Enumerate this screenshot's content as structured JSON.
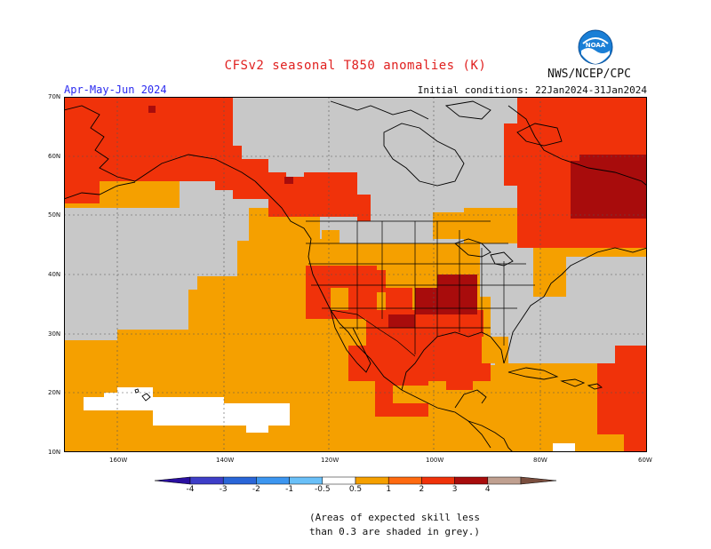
{
  "title": "CFSv2 seasonal T850 anomalies (K)",
  "agency": "NWS/NCEP/CPC",
  "logo_text": "NOAA",
  "period": "Apr-May-Jun 2024",
  "initial_conditions": "Initial conditions: 22Jan2024-31Jan2024",
  "latitude_labels": [
    "70N",
    "60N",
    "50N",
    "40N",
    "30N",
    "20N",
    "10N"
  ],
  "longitude_labels": [
    "160W",
    "140W",
    "120W",
    "100W",
    "80W",
    "60W"
  ],
  "colorbar": {
    "ticks": [
      "-4",
      "-3",
      "-2",
      "-1",
      "-0.5",
      "0.5",
      "1",
      "2",
      "3",
      "4"
    ],
    "colors": [
      "#2a0fa0",
      "#3e3ec8",
      "#2a66d8",
      "#3c96f0",
      "#6ac0f8",
      "#ffffff",
      "#f5a000",
      "#ff6a10",
      "#f0320a",
      "#a80c0c",
      "#c0a090",
      "#7a4e3e"
    ]
  },
  "colors": {
    "grey_no_skill": "#c8c8c8",
    "anomaly_0_5_to_1": "#f5a000",
    "anomaly_1_to_2": "#f0320a",
    "anomaly_2_to_3": "#a80c0c",
    "white": "#ffffff"
  },
  "note_lines": [
    "(Areas of expected skill less",
    "than 0.3 are shaded in grey.)"
  ]
}
